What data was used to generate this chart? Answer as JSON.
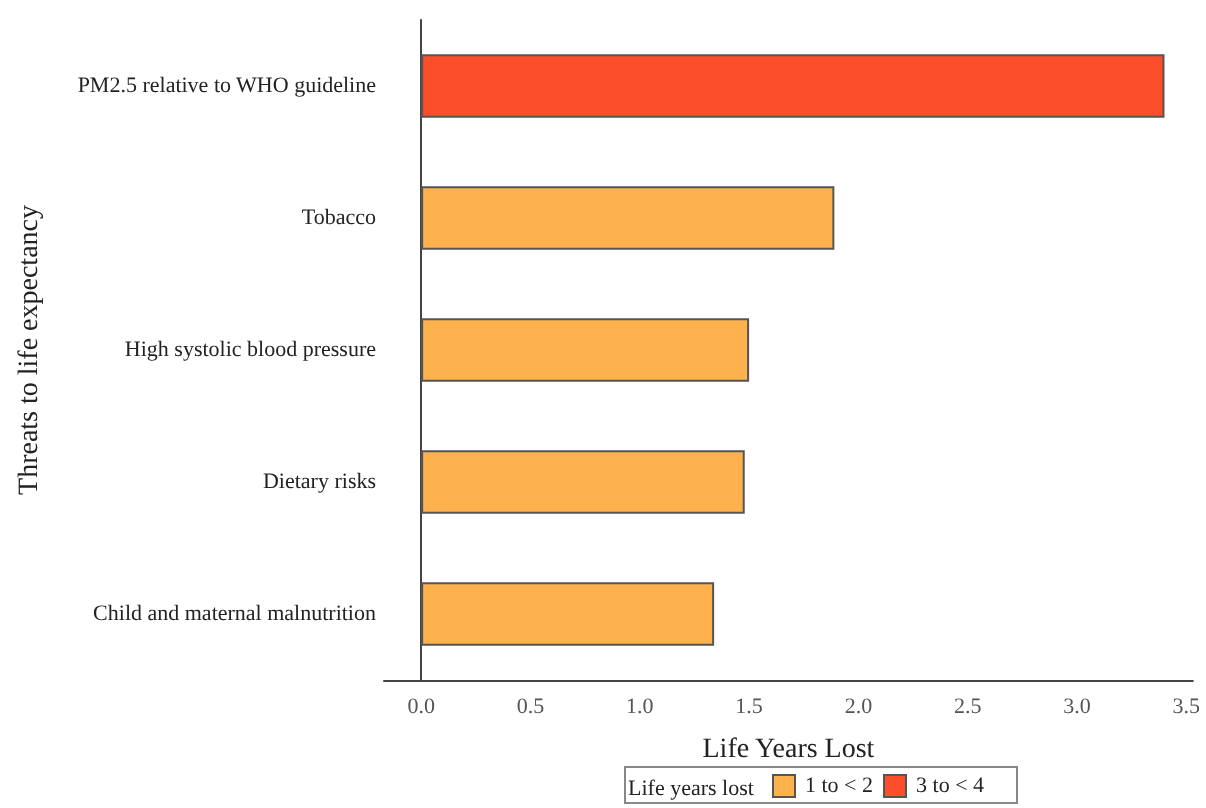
{
  "chart_data": {
    "type": "bar",
    "orientation": "horizontal",
    "xlabel": "Life Years Lost",
    "ylabel": "Threats to life expectancy",
    "legend_title": "Life years lost",
    "legend": "bottom",
    "grid": false,
    "categories": [
      "PM2.5 relative to WHO guideline",
      "Tobacco",
      "High systolic blood pressure",
      "Dietary risks",
      "Child and maternal malnutrition"
    ],
    "series": [
      {
        "name": "1 to < 2",
        "color": "#fdb24e",
        "values": [
          null,
          1.89,
          1.5,
          1.48,
          1.34
        ]
      },
      {
        "name": "3 to < 4",
        "color": "#fc4e2a",
        "values": [
          3.4,
          null,
          null,
          null,
          null
        ]
      }
    ],
    "xlim": [
      -0.17,
      3.53
    ],
    "xticks": [
      {
        "value": 0,
        "label": "0.0"
      },
      0.5,
      {
        "value": 1,
        "label": "1.0"
      },
      1.5,
      {
        "value": 2,
        "label": "2.0"
      },
      2.5,
      {
        "value": 3,
        "label": "3.0"
      },
      3.5
    ]
  }
}
